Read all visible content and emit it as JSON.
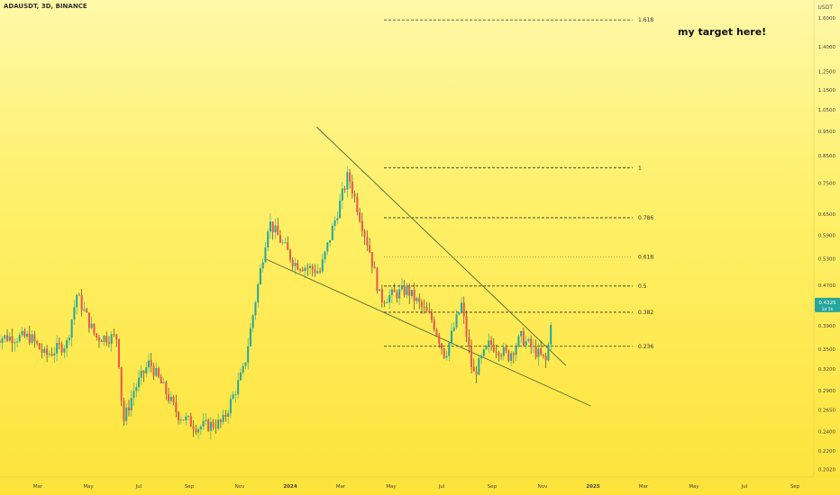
{
  "header": {
    "symbol_line": "ADAUSDT, 3D, BINANCE"
  },
  "annotation": {
    "target_text": "my target here!"
  },
  "scale_mode": "USDT",
  "chart_data": {
    "type": "candlestick",
    "title": "ADAUSDT, 3D, BINANCE",
    "y_scale": "log",
    "ylim": [
      0.195,
      1.68
    ],
    "price_ticks": [
      "1.6000",
      "1.4000",
      "1.2500",
      "1.1500",
      "1.0500",
      "0.9500",
      "0.8500",
      "0.7500",
      "0.6500",
      "0.5900",
      "0.5300",
      "0.4700",
      "0.4200",
      "0.3900",
      "0.3500",
      "0.3200",
      "0.2900",
      "0.2650",
      "0.2400",
      "0.2200",
      "0.2020"
    ],
    "time_ticks": [
      "Mar",
      "May",
      "Jul",
      "Sep",
      "Nov",
      "2024",
      "Mar",
      "May",
      "Jul",
      "Sep",
      "Nov",
      "2025",
      "Mar",
      "May",
      "Jul",
      "Sep"
    ],
    "current_price": {
      "value": 0.4325,
      "label": "0.4325",
      "countdown": "1d 5h"
    },
    "fib_levels": [
      {
        "label": "1.618",
        "value": 1.585,
        "style": "dashed"
      },
      {
        "label": "1",
        "value": 0.805,
        "style": "dashed"
      },
      {
        "label": "0.786",
        "value": 0.64,
        "style": "dashed"
      },
      {
        "label": "0.618",
        "value": 0.535,
        "style": "dotted"
      },
      {
        "label": "0.5",
        "value": 0.468,
        "style": "dashed"
      },
      {
        "label": "0.382",
        "value": 0.415,
        "style": "dashed"
      },
      {
        "label": "0.236",
        "value": 0.355,
        "style": "dashed"
      }
    ],
    "wedge_lines": [
      {
        "name": "upper",
        "from": [
          "Feb 2024",
          0.97
        ],
        "to": [
          "Nov 2024",
          0.325
        ]
      },
      {
        "name": "lower",
        "from": [
          "Dec 2023",
          0.53
        ],
        "to": [
          "Dec 2024",
          0.27
        ]
      }
    ],
    "price_path": [
      {
        "date": "2023-02-20",
        "price": 0.37
      },
      {
        "date": "2023-03-10",
        "price": 0.34
      },
      {
        "date": "2023-04-05",
        "price": 0.36
      },
      {
        "date": "2023-04-17",
        "price": 0.45
      },
      {
        "date": "2023-05-10",
        "price": 0.37
      },
      {
        "date": "2023-06-05",
        "price": 0.37
      },
      {
        "date": "2023-06-12",
        "price": 0.25
      },
      {
        "date": "2023-06-25",
        "price": 0.29
      },
      {
        "date": "2023-07-14",
        "price": 0.33
      },
      {
        "date": "2023-08-17",
        "price": 0.26
      },
      {
        "date": "2023-09-10",
        "price": 0.245
      },
      {
        "date": "2023-10-10",
        "price": 0.25
      },
      {
        "date": "2023-11-05",
        "price": 0.32
      },
      {
        "date": "2023-12-05",
        "price": 0.63
      },
      {
        "date": "2024-01-05",
        "price": 0.52
      },
      {
        "date": "2024-02-05",
        "price": 0.5
      },
      {
        "date": "2024-03-10",
        "price": 0.78
      },
      {
        "date": "2024-04-05",
        "price": 0.55
      },
      {
        "date": "2024-04-18",
        "price": 0.44
      },
      {
        "date": "2024-05-20",
        "price": 0.46
      },
      {
        "date": "2024-06-20",
        "price": 0.4
      },
      {
        "date": "2024-07-05",
        "price": 0.34
      },
      {
        "date": "2024-07-25",
        "price": 0.43
      },
      {
        "date": "2024-08-08",
        "price": 0.31
      },
      {
        "date": "2024-08-28",
        "price": 0.36
      },
      {
        "date": "2024-09-20",
        "price": 0.34
      },
      {
        "date": "2024-10-05",
        "price": 0.37
      },
      {
        "date": "2024-10-20",
        "price": 0.35
      },
      {
        "date": "2024-11-05",
        "price": 0.33
      },
      {
        "date": "2024-11-12",
        "price": 0.4325
      }
    ]
  }
}
